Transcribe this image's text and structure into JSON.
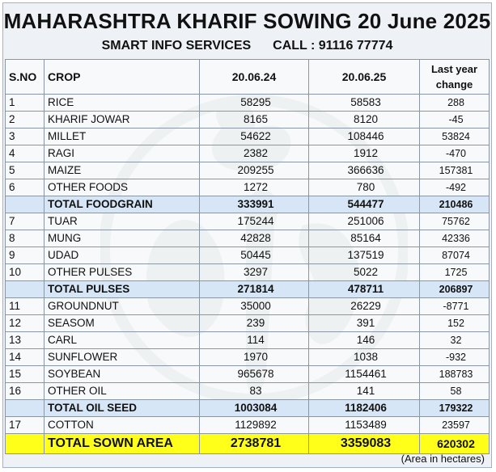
{
  "header": {
    "title": "MAHARASHTRA KHARIF SOWING 20 June 2025",
    "company": "SMART INFO SERVICES",
    "call": "CALL : 91116 77774"
  },
  "columns": {
    "sno": "S.NO",
    "crop": "CROP",
    "date1": "20.06.24",
    "date2": "20.06.25",
    "change_line1": "Last year",
    "change_line2": "change"
  },
  "rows": [
    {
      "sno": "1",
      "crop": "RICE",
      "v2024": "58295",
      "v2025": "58583",
      "change": "288"
    },
    {
      "sno": "2",
      "crop": "KHARIF JOWAR",
      "v2024": "8165",
      "v2025": "8120",
      "change": "-45"
    },
    {
      "sno": "3",
      "crop": "MILLET",
      "v2024": "54622",
      "v2025": "108446",
      "change": "53824"
    },
    {
      "sno": "4",
      "crop": "RAGI",
      "v2024": "2382",
      "v2025": "1912",
      "change": "-470"
    },
    {
      "sno": "5",
      "crop": "MAIZE",
      "v2024": "209255",
      "v2025": "366636",
      "change": "157381"
    },
    {
      "sno": "6",
      "crop": "OTHER FOODS",
      "v2024": "1272",
      "v2025": "780",
      "change": "-492"
    },
    {
      "sno": "",
      "crop": "TOTAL FOODGRAIN",
      "v2024": "333991",
      "v2025": "544477",
      "change": "210486"
    },
    {
      "sno": "7",
      "crop": "TUAR",
      "v2024": "175244",
      "v2025": "251006",
      "change": "75762"
    },
    {
      "sno": "8",
      "crop": "MUNG",
      "v2024": "42828",
      "v2025": "85164",
      "change": "42336"
    },
    {
      "sno": "9",
      "crop": "UDAD",
      "v2024": "50445",
      "v2025": "137519",
      "change": "87074"
    },
    {
      "sno": "10",
      "crop": "OTHER PULSES",
      "v2024": "3297",
      "v2025": "5022",
      "change": "1725"
    },
    {
      "sno": "",
      "crop": "TOTAL PULSES",
      "v2024": "271814",
      "v2025": "478711",
      "change": "206897"
    },
    {
      "sno": "11",
      "crop": "GROUNDNUT",
      "v2024": "35000",
      "v2025": "26229",
      "change": "-8771"
    },
    {
      "sno": "12",
      "crop": "SEASOM",
      "v2024": "239",
      "v2025": "391",
      "change": "152"
    },
    {
      "sno": "13",
      "crop": "CARL",
      "v2024": "114",
      "v2025": "146",
      "change": "32"
    },
    {
      "sno": "14",
      "crop": "SUNFLOWER",
      "v2024": "1970",
      "v2025": "1038",
      "change": "-932"
    },
    {
      "sno": "15",
      "crop": "SOYBEAN",
      "v2024": "965678",
      "v2025": "1154461",
      "change": "188783"
    },
    {
      "sno": "16",
      "crop": "OTHER OIL",
      "v2024": "83",
      "v2025": "141",
      "change": "58"
    },
    {
      "sno": "",
      "crop": "TOTAL OIL SEED",
      "v2024": "1003084",
      "v2025": "1182406",
      "change": "179322"
    },
    {
      "sno": "17",
      "crop": "COTTON",
      "v2024": "1129892",
      "v2025": "1153489",
      "change": "23597"
    },
    {
      "sno": "",
      "crop": "TOTAL SOWN AREA",
      "v2024": "2738781",
      "v2025": "3359083",
      "change": "620302"
    }
  ],
  "footer": "(Area in hectares)",
  "colors": {
    "total_row": "#d6e6f6",
    "grand_total_row": "#ffff1a",
    "background": "#eef2f7"
  }
}
